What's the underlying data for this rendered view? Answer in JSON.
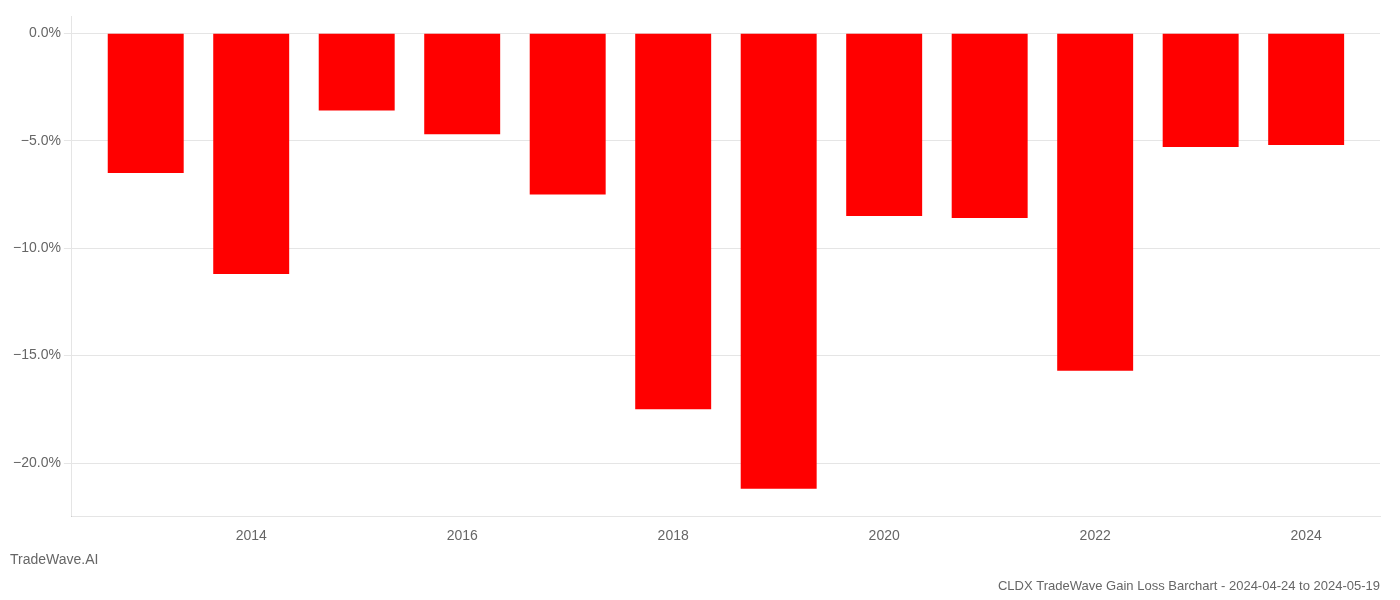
{
  "chart_data": {
    "type": "bar",
    "title": "CLDX TradeWave Gain Loss Barchart - 2024-04-24 to 2024-05-19",
    "annotations": [
      "TradeWave.AI"
    ],
    "x": [
      2013,
      2014,
      2015,
      2016,
      2017,
      2018,
      2019,
      2020,
      2021,
      2022,
      2023,
      2024
    ],
    "values": [
      -6.5,
      -11.2,
      -3.6,
      -4.7,
      -7.5,
      -17.5,
      -21.2,
      -8.5,
      -8.6,
      -15.7,
      -5.3,
      -5.2
    ],
    "color": "#ff0000",
    "xlim": [
      2012.3,
      2024.7
    ],
    "xticks": [
      2014,
      2016,
      2018,
      2020,
      2022,
      2024
    ],
    "ylim": [
      -22.5,
      0.8
    ],
    "yticks": [
      {
        "value": 0.0,
        "label": "0.0%"
      },
      {
        "value": -5.0,
        "label": "−5.0%"
      },
      {
        "value": -10.0,
        "label": "−10.0%"
      },
      {
        "value": -15.0,
        "label": "−15.0%"
      },
      {
        "value": -20.0,
        "label": "−20.0%"
      }
    ],
    "grid": "y"
  }
}
